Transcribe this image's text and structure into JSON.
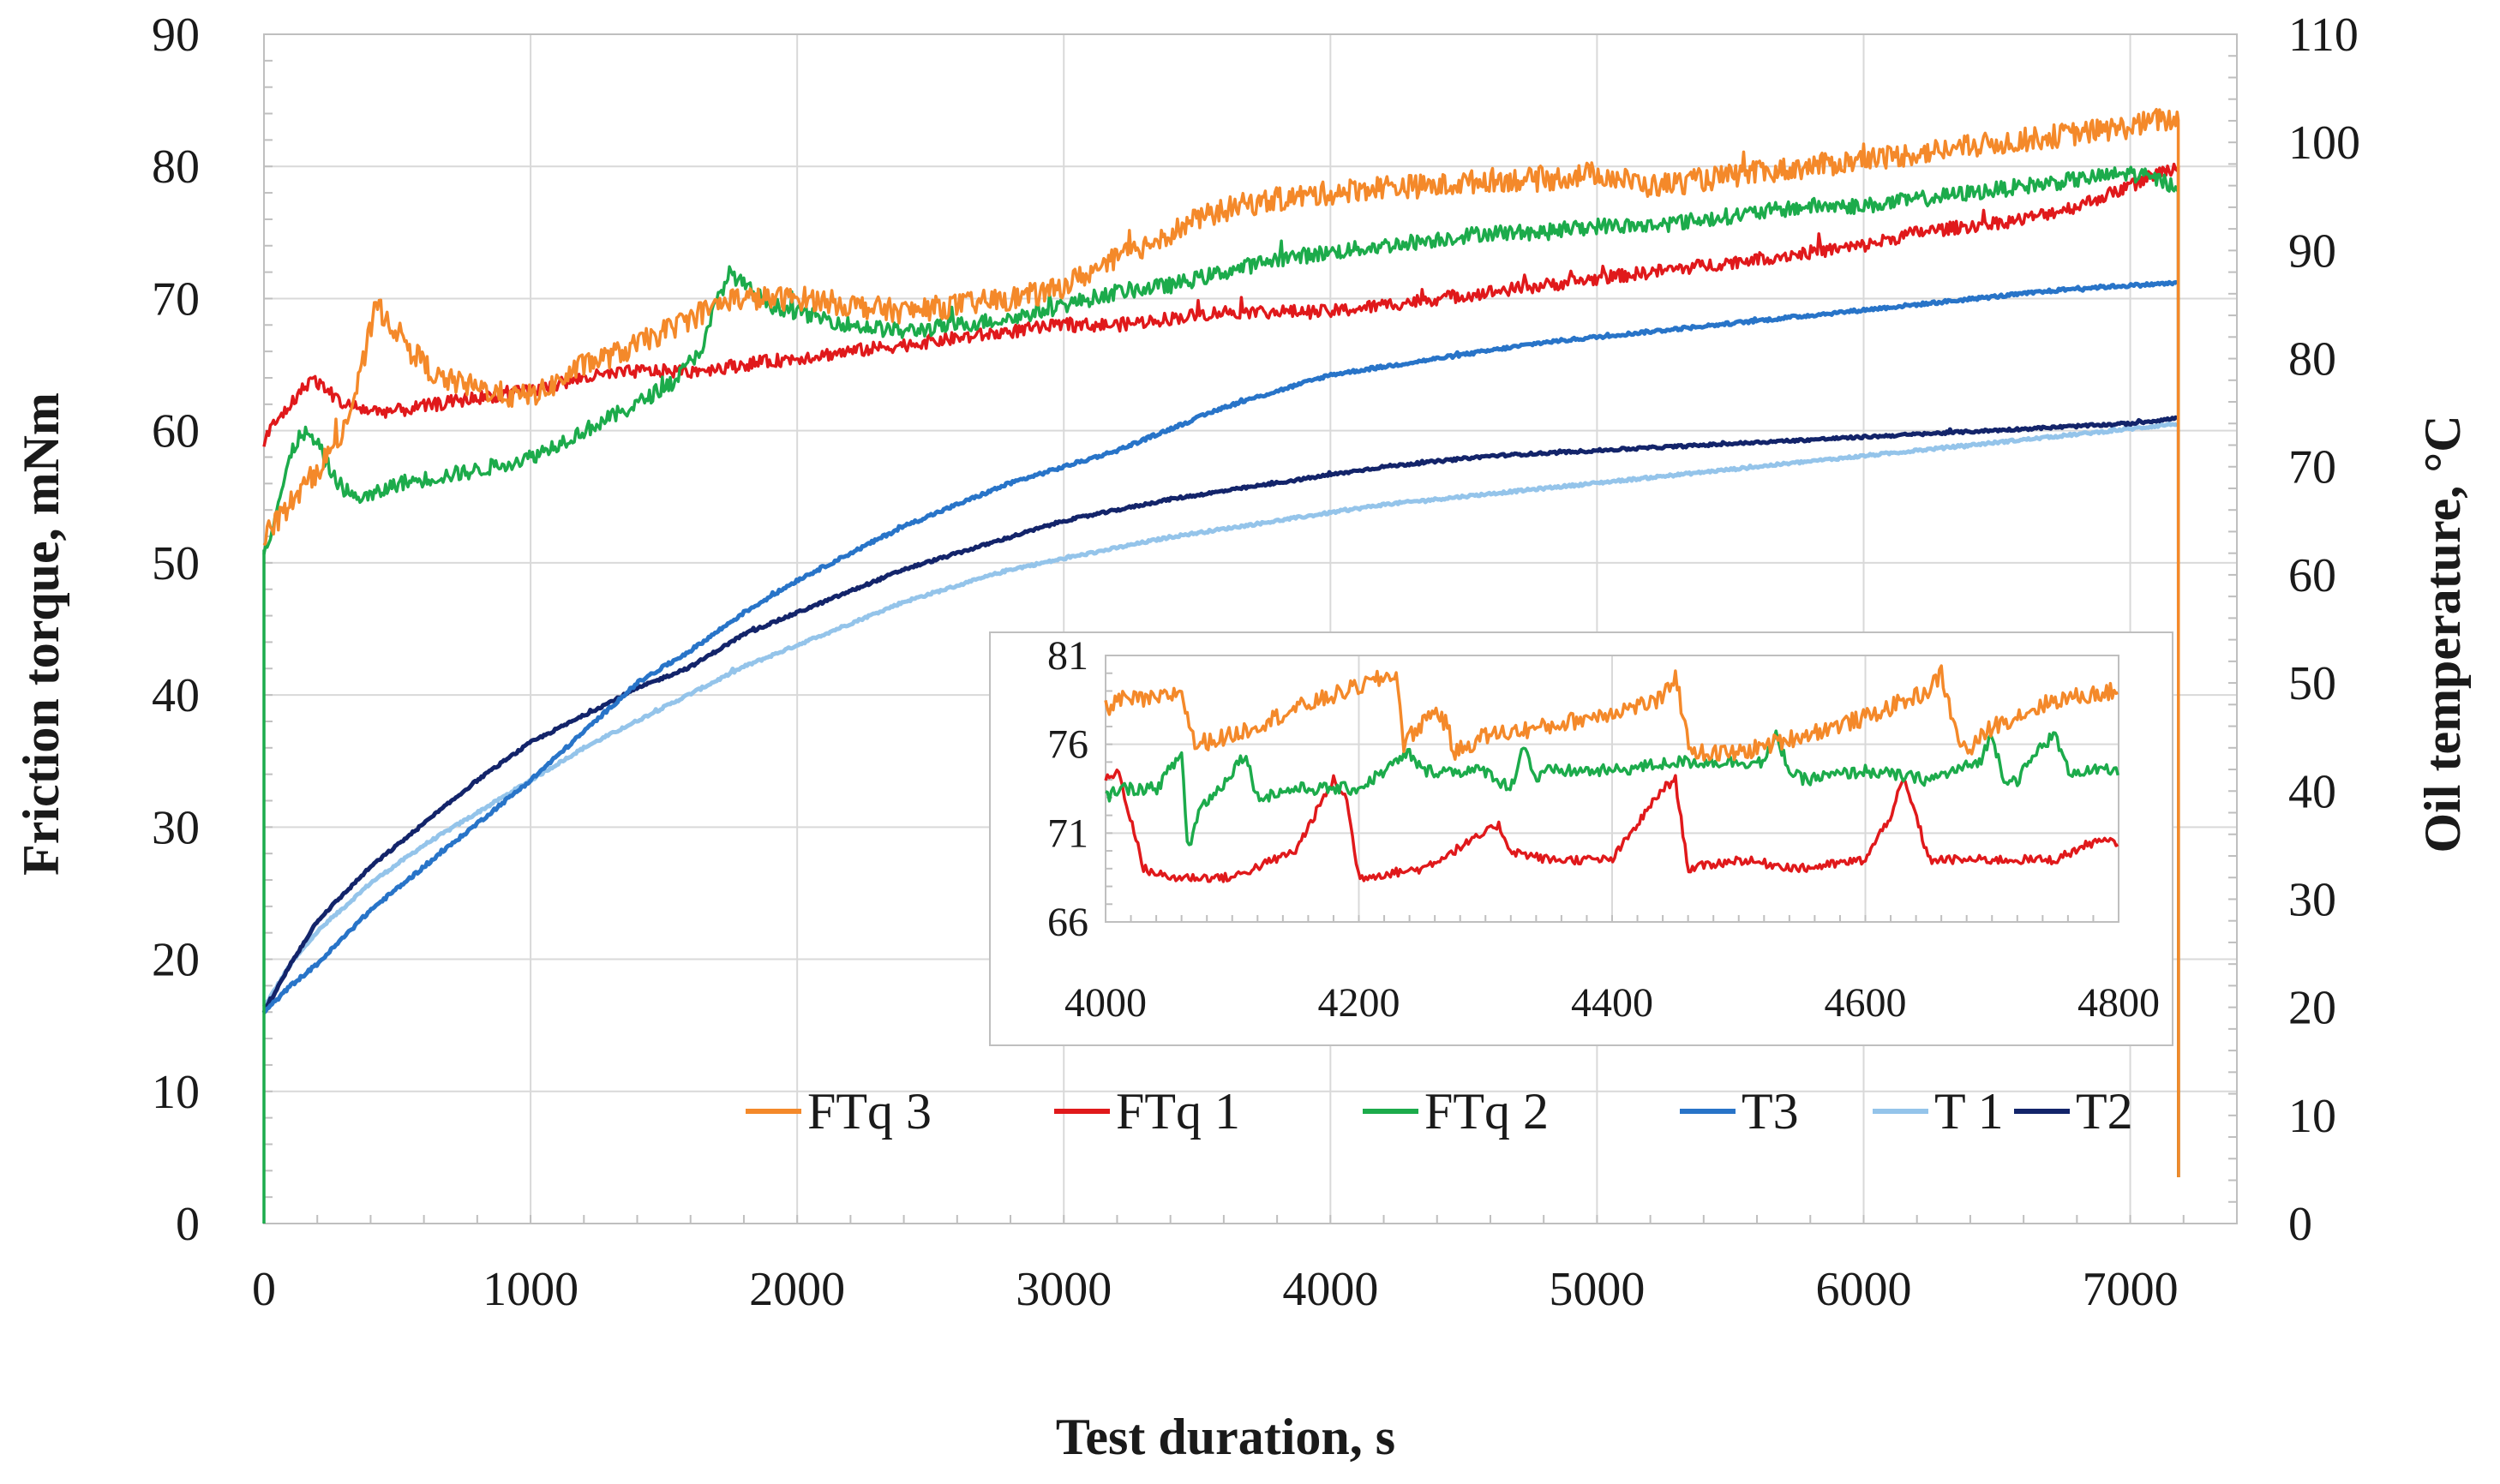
{
  "chart_data": {
    "type": "line",
    "title": "",
    "xlabel": "Test duration, s",
    "ylabel": "Friction torque, mNm",
    "y2label": "Oil temperature, °C",
    "xlim": [
      0,
      7400
    ],
    "ylim": [
      0,
      90
    ],
    "y2lim": [
      0,
      110
    ],
    "x_ticks": [
      0,
      1000,
      2000,
      3000,
      4000,
      5000,
      6000,
      7000
    ],
    "y_ticks": [
      0,
      10,
      20,
      30,
      40,
      50,
      60,
      70,
      80,
      90
    ],
    "y2_ticks": [
      0,
      10,
      20,
      30,
      40,
      50,
      60,
      70,
      80,
      90,
      100,
      110
    ],
    "x_tick_labels": [
      "0",
      "1000",
      "2000",
      "3000",
      "4000",
      "5000",
      "6000",
      "7000"
    ],
    "y_tick_labels": [
      "0",
      "10",
      "20",
      "30",
      "40",
      "50",
      "60",
      "70",
      "80",
      "90"
    ],
    "y2_tick_labels": [
      "0",
      "10",
      "20",
      "30",
      "40",
      "50",
      "60",
      "70",
      "80",
      "90",
      "100",
      "110"
    ],
    "grid": true,
    "legend_position": "bottom-right",
    "series": [
      {
        "name": "FTq 3",
        "axis": "left",
        "color": "#f4892a",
        "noise": 0.9,
        "x": [
          0,
          40,
          120,
          200,
          300,
          360,
          420,
          480,
          560,
          650,
          750,
          850,
          950,
          1050,
          1200,
          1350,
          1500,
          1650,
          1750,
          1900,
          2050,
          2200,
          2400,
          2600,
          2800,
          2950,
          3100,
          3300,
          3500,
          3650,
          3800,
          4000,
          4200,
          4400,
          4600,
          4800,
          5000,
          5200,
          5400,
          5600,
          5800,
          6000,
          6200,
          6400,
          6600,
          6800,
          7000,
          7100,
          7180,
          7181
        ],
        "y": [
          52,
          53,
          55,
          57,
          60,
          64,
          69.5,
          68,
          66,
          64,
          63.5,
          63,
          62.5,
          63,
          65,
          66,
          67.5,
          69,
          70,
          70,
          70,
          69.5,
          69,
          69.5,
          70,
          70.5,
          72,
          74,
          76,
          77,
          77.5,
          78,
          78.5,
          78.5,
          79,
          79,
          79.5,
          78.5,
          79,
          79.5,
          80,
          80.5,
          81,
          81.5,
          82,
          82.5,
          83,
          83.5,
          83.5,
          3.5
        ]
      },
      {
        "name": "FTq 1",
        "axis": "left",
        "color": "#e0191b",
        "noise": 0.5,
        "x": [
          0,
          20,
          60,
          120,
          180,
          240,
          300,
          400,
          500,
          650,
          800,
          1000,
          1200,
          1400,
          1600,
          1800,
          2000,
          2200,
          2400,
          2600,
          2800,
          3000,
          3200,
          3400,
          3600,
          3800,
          4000,
          4200,
          4400,
          4600,
          4800,
          5000,
          5200,
          5400,
          5600,
          5800,
          6000,
          6200,
          6400,
          6600,
          6800,
          7000,
          7100,
          7180,
          7181
        ],
        "y": [
          59,
          60,
          61,
          62.5,
          64,
          63,
          62,
          61.5,
          61.5,
          62,
          62.5,
          63,
          64,
          64.5,
          64.5,
          65,
          65.5,
          66,
          66.5,
          67,
          67.5,
          68,
          68,
          68.5,
          69,
          69,
          69,
          69.5,
          70,
          70.5,
          71,
          71.5,
          72,
          72.5,
          73,
          73.5,
          74,
          75,
          75.5,
          76,
          77,
          78.5,
          79.5,
          80,
          3.5
        ]
      },
      {
        "name": "FTq 2",
        "axis": "left",
        "color": "#1cab4b",
        "noise": 0.6,
        "x": [
          0,
          20,
          60,
          100,
          140,
          200,
          260,
          330,
          400,
          500,
          650,
          800,
          1000,
          1200,
          1400,
          1550,
          1650,
          1700,
          1750,
          1800,
          1900,
          2000,
          2200,
          2400,
          2600,
          2800,
          3000,
          3200,
          3400,
          3600,
          3800,
          4000,
          4200,
          4400,
          4600,
          4800,
          5000,
          5200,
          5400,
          5600,
          5800,
          6000,
          6200,
          6400,
          6600,
          6800,
          7000,
          7100,
          7180,
          7181
        ],
        "y": [
          51,
          52,
          55,
          58,
          60,
          59,
          56.5,
          55,
          55,
          56,
          56.5,
          57,
          58,
          60,
          62,
          64,
          66.5,
          70,
          72,
          71,
          69.5,
          69,
          68,
          67.5,
          68,
          68.5,
          69.5,
          70.5,
          71,
          72,
          73,
          73.5,
          74,
          74.5,
          75,
          75,
          75.5,
          75.5,
          76,
          76.5,
          77,
          77,
          77.5,
          78,
          78.5,
          79,
          79.5,
          79,
          78.5,
          3.5
        ]
      },
      {
        "name": "T3",
        "axis": "right",
        "color": "#2874c8",
        "noise": 0.15,
        "x": [
          0,
          100,
          200,
          400,
          600,
          800,
          1000,
          1200,
          1400,
          1600,
          1800,
          2000,
          2200,
          2400,
          2600,
          2800,
          3000,
          3200,
          3400,
          3600,
          3800,
          4000,
          4400,
          4800,
          5200,
          5600,
          6000,
          6400,
          6800,
          7180
        ],
        "y": [
          19.5,
          22,
          24,
          29,
          33,
          37,
          41,
          45.5,
          50,
          53,
          56.5,
          59.5,
          62,
          64.5,
          66.5,
          68.5,
          70,
          71.5,
          73.5,
          75.5,
          77,
          78.5,
          80,
          81.5,
          82.5,
          83.5,
          84.5,
          85.5,
          86.5,
          87
        ]
      },
      {
        "name": "T 1",
        "axis": "right",
        "color": "#94c4ea",
        "noise": 0.12,
        "x": [
          0,
          100,
          200,
          400,
          600,
          800,
          1000,
          1200,
          1400,
          1600,
          1800,
          2000,
          2200,
          2400,
          2600,
          2800,
          3000,
          3400,
          3800,
          4200,
          4600,
          5000,
          5400,
          5800,
          6200,
          6600,
          7000,
          7180
        ],
        "y": [
          20,
          24,
          27,
          31.5,
          35,
          38,
          41,
          44,
          46.5,
          49,
          51.5,
          53.5,
          55.5,
          57.5,
          59,
          60.5,
          61.5,
          63.5,
          65,
          66.5,
          67.5,
          68.5,
          69.5,
          70.5,
          71.5,
          72.5,
          73.5,
          74
        ]
      },
      {
        "name": "T2",
        "axis": "right",
        "color": "#13246a",
        "noise": 0.12,
        "x": [
          0,
          100,
          200,
          400,
          600,
          800,
          1000,
          1200,
          1400,
          1600,
          1800,
          2000,
          2200,
          2400,
          2600,
          2800,
          3000,
          3400,
          3800,
          4200,
          4600,
          5000,
          5400,
          5800,
          6200,
          6600,
          7000,
          7180
        ],
        "y": [
          19.5,
          24,
          28,
          33,
          37,
          41,
          44.5,
          47,
          49.5,
          51.5,
          54.5,
          56.5,
          58.5,
          60.5,
          62,
          63.5,
          65,
          67,
          68.5,
          70,
          71,
          71.5,
          72,
          72.5,
          73,
          73.5,
          74,
          74.5
        ]
      }
    ],
    "inset": {
      "type": "line",
      "xlim": [
        4000,
        4800
      ],
      "ylim": [
        66,
        81
      ],
      "x_ticks": [
        4000,
        4200,
        4400,
        4600,
        4800
      ],
      "y_ticks": [
        66,
        71,
        76,
        81
      ],
      "x_tick_labels": [
        "4000",
        "4200",
        "4400",
        "4600",
        "4800"
      ],
      "y_tick_labels": [
        "66",
        "71",
        "76",
        "81"
      ],
      "series": [
        {
          "name": "FTq 3",
          "color": "#f4892a",
          "noise": 0.5,
          "x": [
            4000,
            4010,
            4040,
            4060,
            4070,
            4100,
            4150,
            4210,
            4230,
            4235,
            4260,
            4270,
            4275,
            4300,
            4350,
            4440,
            4450,
            4460,
            4470,
            4500,
            4550,
            4600,
            4650,
            4660,
            4670,
            4680,
            4700,
            4750,
            4800
          ],
          "y": [
            78,
            78.5,
            78.5,
            79,
            76,
            76.5,
            78,
            79.5,
            80,
            76,
            78,
            77,
            75.5,
            76.5,
            77,
            78.5,
            80,
            76,
            75.5,
            75.5,
            76.5,
            77.5,
            79,
            80,
            77,
            75.5,
            77,
            78.5,
            79
          ]
        },
        {
          "name": "FTq 1",
          "color": "#e0191b",
          "noise": 0.25,
          "x": [
            4000,
            4010,
            4030,
            4050,
            4100,
            4150,
            4180,
            4190,
            4200,
            4250,
            4300,
            4310,
            4320,
            4350,
            4400,
            4440,
            4450,
            4460,
            4500,
            4550,
            4600,
            4620,
            4630,
            4640,
            4650,
            4700,
            4750,
            4780,
            4800
          ],
          "y": [
            74,
            74.5,
            69,
            68.5,
            68.5,
            70,
            74,
            73,
            68.5,
            69,
            71,
            71.5,
            70,
            69.5,
            69.5,
            73.5,
            74,
            69,
            69.5,
            69,
            69.5,
            72,
            74,
            72,
            69.5,
            69.5,
            69.5,
            70.5,
            70.5
          ]
        },
        {
          "name": "FTq 2",
          "color": "#1cab4b",
          "noise": 0.35,
          "x": [
            4000,
            4010,
            4040,
            4060,
            4065,
            4075,
            4090,
            4110,
            4120,
            4150,
            4200,
            4230,
            4240,
            4250,
            4300,
            4320,
            4330,
            4340,
            4350,
            4400,
            4450,
            4500,
            4520,
            4530,
            4540,
            4550,
            4600,
            4650,
            4690,
            4700,
            4710,
            4720,
            4740,
            4750,
            4760,
            4800
          ],
          "y": [
            73,
            73.5,
            73.5,
            75.5,
            70,
            72.5,
            73.5,
            75.5,
            73,
            73.5,
            73.5,
            75,
            75.5,
            74.5,
            74.5,
            73.5,
            76,
            74,
            74.5,
            74.5,
            75,
            75,
            75,
            76.5,
            74.5,
            74,
            74.5,
            74,
            75,
            76.5,
            74,
            74,
            76,
            76.5,
            74.5,
            74.5
          ]
        }
      ]
    },
    "legend": [
      "FTq 3",
      "FTq 1",
      "FTq 2",
      "T3",
      "T 1",
      "T2"
    ]
  }
}
